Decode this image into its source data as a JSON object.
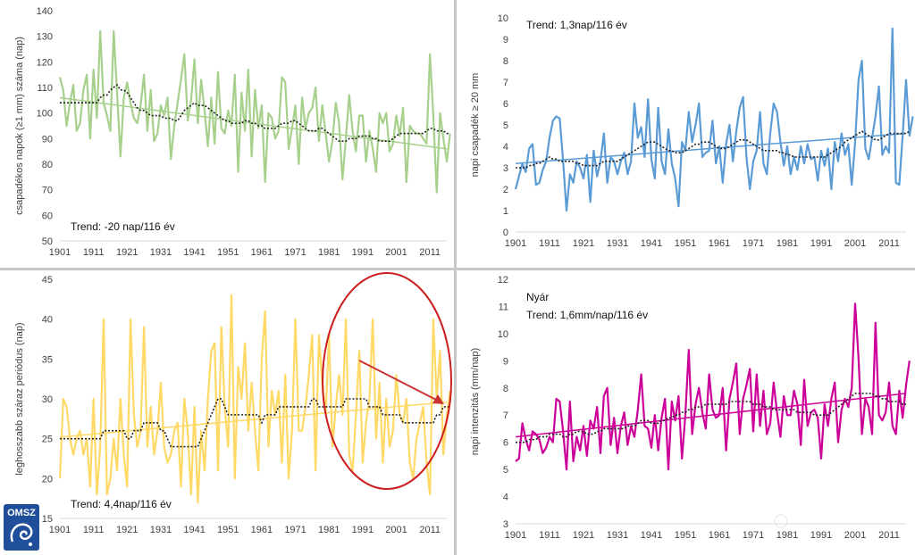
{
  "logo": {
    "text": "OMSZ",
    "color": "#1f4e9a"
  },
  "chart_data": [
    {
      "type": "line",
      "ylabel": "csapadékos napok (≥1 mm) száma (nap)",
      "ylim": [
        50,
        140
      ],
      "yticks": [
        50,
        60,
        70,
        80,
        90,
        100,
        110,
        120,
        130,
        140
      ],
      "xlim": [
        1901,
        2016
      ],
      "xticks": [
        1901,
        1911,
        1921,
        1931,
        1941,
        1951,
        1961,
        1971,
        1981,
        1991,
        2001,
        2011
      ],
      "annotation": "Trend: -20 nap/116 év",
      "annotation_pos": "bottom-left",
      "color": "#a8d08d",
      "trend": [
        106,
        86
      ],
      "series": [
        {
          "name": "annual",
          "values": [
            114,
            109,
            95,
            104,
            111,
            93,
            96,
            109,
            115,
            90,
            117,
            98,
            132,
            104,
            99,
            93,
            132,
            108,
            83,
            106,
            112,
            104,
            98,
            96,
            103,
            115,
            93,
            109,
            89,
            92,
            103,
            99,
            106,
            82,
            95,
            104,
            113,
            123,
            97,
            105,
            121,
            96,
            113,
            101,
            87,
            106,
            88,
            116,
            94,
            92,
            101,
            95,
            115,
            77,
            108,
            93,
            117,
            83,
            109,
            94,
            103,
            73,
            100,
            98,
            90,
            93,
            114,
            112,
            86,
            94,
            103,
            80,
            106,
            94,
            100,
            102,
            110,
            89,
            103,
            92,
            81,
            89,
            104,
            96,
            74,
            90,
            107,
            93,
            85,
            99,
            99,
            81,
            93,
            86,
            77,
            100,
            96,
            100,
            85,
            88,
            99,
            91,
            102,
            73,
            95,
            93,
            92,
            92,
            90,
            88,
            123,
            99,
            69,
            100,
            90,
            81,
            92
          ]
        },
        {
          "name": "moving_avg",
          "values": [
            104,
            104,
            104,
            104,
            104,
            104,
            104,
            104,
            104,
            104,
            104,
            104,
            106,
            107,
            107,
            109,
            110,
            111,
            109,
            109,
            108,
            106,
            104,
            102,
            101,
            101,
            100,
            99,
            99,
            99,
            99,
            98,
            98,
            98,
            97,
            97,
            99,
            101,
            102,
            103,
            104,
            103,
            103,
            103,
            102,
            101,
            100,
            99,
            98,
            97,
            97,
            96,
            96,
            96,
            96,
            97,
            97,
            96,
            96,
            95,
            95,
            94,
            94,
            94,
            94,
            95,
            96,
            96,
            96,
            97,
            97,
            96,
            95,
            94,
            93,
            93,
            93,
            94,
            94,
            93,
            92,
            91,
            90,
            89,
            89,
            89,
            90,
            90,
            90,
            91,
            91,
            91,
            91,
            90,
            90,
            89,
            89,
            89,
            89,
            90,
            91,
            92,
            92,
            92,
            92,
            92,
            92,
            92,
            92,
            93,
            94,
            94,
            93,
            93,
            93,
            92,
            92
          ]
        }
      ]
    },
    {
      "type": "line",
      "ylabel": "napi csapadék ≥ 20 mm",
      "ylim": [
        0,
        10
      ],
      "yticks": [
        0,
        1,
        2,
        3,
        4,
        5,
        6,
        7,
        8,
        9,
        10
      ],
      "xlim": [
        1901,
        2016
      ],
      "xticks": [
        1901,
        1911,
        1921,
        1931,
        1941,
        1951,
        1961,
        1971,
        1981,
        1991,
        2001,
        2011
      ],
      "annotation": "Trend: 1,3nap/116 év",
      "annotation_pos": "top-left",
      "color": "#5b9bd5",
      "trend": [
        3.2,
        4.6
      ],
      "series": [
        {
          "name": "annual",
          "values": [
            2.0,
            2.6,
            3.2,
            2.8,
            3.9,
            4.1,
            2.2,
            2.3,
            2.9,
            3.3,
            4.4,
            5.2,
            5.4,
            5.3,
            3.3,
            1.0,
            2.7,
            2.3,
            3.3,
            3.0,
            2.5,
            3.6,
            1.4,
            3.8,
            2.6,
            3.3,
            4.6,
            2.3,
            3.5,
            3.3,
            2.7,
            3.3,
            3.7,
            2.7,
            3.3,
            6.0,
            4.4,
            4.9,
            3.5,
            6.2,
            3.4,
            2.5,
            5.8,
            3.3,
            2.7,
            4.8,
            3.2,
            2.5,
            1.2,
            4.2,
            3.8,
            5.6,
            4.2,
            5.0,
            6.0,
            3.5,
            3.7,
            3.8,
            5.2,
            3.2,
            4.0,
            2.3,
            4.1,
            5.0,
            3.3,
            4.7,
            5.8,
            6.3,
            3.5,
            2.0,
            3.3,
            3.8,
            5.6,
            3.2,
            2.7,
            4.6,
            6.0,
            5.6,
            4.2,
            3.1,
            4.0,
            2.7,
            3.5,
            2.9,
            4.0,
            3.2,
            4.1,
            3.4,
            3.5,
            2.4,
            3.8,
            3.1,
            3.9,
            2.0,
            4.2,
            3.3,
            4.6,
            3.6,
            4.1,
            2.2,
            4.2,
            7.1,
            8.0,
            3.9,
            3.4,
            4.4,
            5.4,
            6.8,
            3.6,
            4.0,
            3.7,
            9.5,
            2.3,
            2.2,
            4.5,
            7.1,
            4.5,
            5.4
          ]
        },
        {
          "name": "moving_avg",
          "values": [
            3.0,
            3.0,
            3.0,
            3.0,
            3.1,
            3.1,
            3.2,
            3.2,
            3.3,
            3.4,
            3.5,
            3.4,
            3.4,
            3.3,
            3.3,
            3.3,
            3.3,
            3.3,
            3.2,
            3.2,
            3.1,
            3.1,
            3.1,
            3.1,
            3.1,
            3.2,
            3.3,
            3.3,
            3.3,
            3.3,
            3.3,
            3.4,
            3.5,
            3.6,
            3.7,
            3.8,
            3.9,
            4.0,
            4.1,
            4.2,
            4.2,
            4.2,
            4.1,
            4.0,
            3.9,
            3.8,
            3.8,
            3.7,
            3.7,
            3.7,
            3.8,
            3.9,
            4.0,
            4.1,
            4.1,
            4.2,
            4.2,
            4.2,
            4.1,
            4.0,
            3.9,
            3.9,
            3.9,
            4.0,
            4.1,
            4.2,
            4.3,
            4.3,
            4.3,
            4.2,
            4.1,
            4.0,
            3.9,
            3.8,
            3.8,
            3.8,
            3.8,
            3.8,
            3.7,
            3.7,
            3.6,
            3.6,
            3.5,
            3.5,
            3.5,
            3.5,
            3.5,
            3.5,
            3.5,
            3.5,
            3.5,
            3.5,
            3.6,
            3.7,
            3.8,
            3.9,
            4.0,
            4.2,
            4.3,
            4.4,
            4.5,
            4.6,
            4.7,
            4.6,
            4.5,
            4.4,
            4.3,
            4.3,
            4.4,
            4.5,
            4.6,
            4.6,
            4.6,
            4.6,
            4.6,
            4.6,
            4.7
          ]
        }
      ]
    },
    {
      "type": "line",
      "ylabel": "leghosszabb száraz periódus (nap)",
      "ylim": [
        15,
        45
      ],
      "yticks": [
        15,
        20,
        25,
        30,
        35,
        40,
        45
      ],
      "xlim": [
        1901,
        2016
      ],
      "xticks": [
        1901,
        1911,
        1921,
        1931,
        1941,
        1951,
        1961,
        1971,
        1981,
        1991,
        2001,
        2011
      ],
      "annotation": "Trend: 4,4nap/116 év",
      "annotation_pos": "bottom-left",
      "color": "#ffd966",
      "trend": [
        25.2,
        29.6
      ],
      "series": [
        {
          "name": "annual",
          "values": [
            20,
            30,
            29,
            25,
            23,
            25,
            26,
            23,
            25,
            19,
            30,
            18,
            24,
            40,
            18,
            20,
            25,
            21,
            30,
            23,
            19,
            40,
            28,
            24,
            26,
            39,
            24,
            29,
            23,
            26,
            32,
            24,
            22,
            23,
            26,
            27,
            19,
            30,
            26,
            18,
            29,
            17,
            26,
            21,
            30,
            36,
            37,
            21,
            39,
            29,
            24,
            43,
            20,
            34,
            30,
            37,
            26,
            32,
            26,
            21,
            35,
            41,
            24,
            31,
            28,
            31,
            22,
            33,
            20,
            26,
            40,
            26,
            26,
            29,
            33,
            38,
            21,
            38,
            32,
            28,
            38,
            24,
            29,
            33,
            28,
            40,
            23,
            21,
            28,
            36,
            22,
            27,
            30,
            40,
            25,
            32,
            22,
            30,
            24,
            26,
            33,
            28,
            27,
            30,
            22,
            20,
            25,
            27,
            29,
            22,
            18,
            40,
            30,
            36,
            23,
            28,
            31
          ]
        },
        {
          "name": "moving_avg",
          "values": [
            25,
            25,
            25,
            25,
            25,
            25,
            25,
            25,
            25,
            25,
            25,
            25,
            25,
            26,
            26,
            26,
            26,
            26,
            26,
            26,
            25,
            25,
            26,
            26,
            26,
            27,
            27,
            27,
            27,
            27,
            26,
            26,
            25,
            24,
            24,
            24,
            24,
            24,
            24,
            24,
            24,
            24,
            25,
            26,
            27,
            28,
            29,
            30,
            30,
            29,
            28,
            28,
            28,
            28,
            28,
            28,
            28,
            28,
            28,
            28,
            27,
            28,
            28,
            28,
            28,
            29,
            29,
            29,
            29,
            29,
            29,
            29,
            29,
            29,
            29,
            30,
            30,
            29,
            29,
            29,
            29,
            29,
            29,
            29,
            29,
            30,
            30,
            30,
            30,
            30,
            30,
            30,
            29,
            29,
            29,
            29,
            28,
            28,
            28,
            28,
            28,
            28,
            27,
            27,
            27,
            27,
            27,
            27,
            27,
            27,
            27,
            27,
            28,
            28,
            29,
            29,
            29
          ]
        }
      ]
    },
    {
      "type": "line",
      "ylabel": "napi intenzitás (mm/nap)",
      "ylim": [
        3,
        12
      ],
      "yticks": [
        3,
        4,
        5,
        6,
        7,
        8,
        9,
        10,
        11,
        12
      ],
      "xlim": [
        1901,
        2016
      ],
      "xticks": [
        1901,
        1911,
        1921,
        1931,
        1941,
        1951,
        1961,
        1971,
        1981,
        1991,
        2001,
        2011
      ],
      "annotation_title": "Nyár",
      "annotation": "Trend: 1,6mm/nap/116 év",
      "annotation_pos": "top-left",
      "color": "#cc0099",
      "trend": [
        6.2,
        7.8
      ],
      "series": [
        {
          "name": "annual",
          "values": [
            5.3,
            5.4,
            6.7,
            6.1,
            5.7,
            6.4,
            6.3,
            6.1,
            5.6,
            5.8,
            6.2,
            6.0,
            7.6,
            7.5,
            6.4,
            5.0,
            7.5,
            5.3,
            6.2,
            5.7,
            6.6,
            5.5,
            6.8,
            6.5,
            7.3,
            5.6,
            7.7,
            8.0,
            5.9,
            6.9,
            5.6,
            6.6,
            7.1,
            5.9,
            6.6,
            6.2,
            7.2,
            8.5,
            6.6,
            6.5,
            5.8,
            7.0,
            5.7,
            6.9,
            7.6,
            5.0,
            7.5,
            6.8,
            7.7,
            5.4,
            7.0,
            9.4,
            6.3,
            7.4,
            8.0,
            7.1,
            6.5,
            8.5,
            7.2,
            6.9,
            7.0,
            8.0,
            5.7,
            7.6,
            8.2,
            8.9,
            6.3,
            7.6,
            8.1,
            8.7,
            6.4,
            8.5,
            6.6,
            7.9,
            6.3,
            6.7,
            8.2,
            7.1,
            6.2,
            7.7,
            7.0,
            7.0,
            7.9,
            7.4,
            5.9,
            8.3,
            6.6,
            7.1,
            7.2,
            6.9,
            5.4,
            7.4,
            6.6,
            7.6,
            8.2,
            6.0,
            7.2,
            7.6,
            7.3,
            8.0,
            11.1,
            9.1,
            6.3,
            7.6,
            7.3,
            6.3,
            10.4,
            7.0,
            6.8,
            7.1,
            8.2,
            6.6,
            6.3,
            7.9,
            6.9,
            8.1,
            9.0
          ]
        },
        {
          "name": "moving_avg",
          "values": [
            6.0,
            6.0,
            6.0,
            6.0,
            6.1,
            6.1,
            6.1,
            6.2,
            6.2,
            6.2,
            6.3,
            6.3,
            6.3,
            6.3,
            6.2,
            6.2,
            6.3,
            6.3,
            6.4,
            6.4,
            6.4,
            6.3,
            6.3,
            6.3,
            6.4,
            6.4,
            6.5,
            6.5,
            6.5,
            6.5,
            6.5,
            6.5,
            6.5,
            6.6,
            6.6,
            6.6,
            6.7,
            6.8,
            6.8,
            6.8,
            6.7,
            6.7,
            6.7,
            6.8,
            6.8,
            6.9,
            6.9,
            7.0,
            7.0,
            7.1,
            7.1,
            7.2,
            7.2,
            7.3,
            7.3,
            7.3,
            7.4,
            7.4,
            7.4,
            7.4,
            7.4,
            7.4,
            7.4,
            7.5,
            7.5,
            7.5,
            7.5,
            7.5,
            7.5,
            7.5,
            7.4,
            7.4,
            7.4,
            7.3,
            7.3,
            7.3,
            7.2,
            7.2,
            7.2,
            7.2,
            7.2,
            7.2,
            7.2,
            7.1,
            7.1,
            7.1,
            7.1,
            7.1,
            7.0,
            7.0,
            7.0,
            7.0,
            7.0,
            7.1,
            7.2,
            7.3,
            7.4,
            7.5,
            7.6,
            7.7,
            7.8,
            7.8,
            7.8,
            7.8,
            7.8,
            7.8,
            7.7,
            7.7,
            7.6,
            7.6,
            7.5,
            7.5,
            7.5,
            7.5,
            7.4,
            7.4
          ]
        }
      ]
    }
  ],
  "highlight": {
    "shape": "ellipse",
    "color": "#cc1f1f",
    "arrow_color": "#cc3333"
  }
}
